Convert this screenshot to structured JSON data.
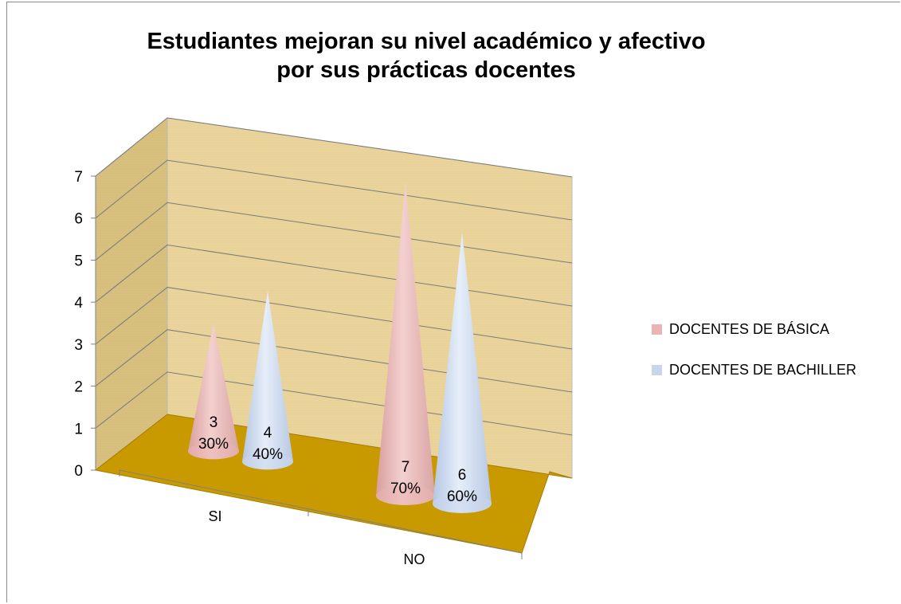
{
  "chart_data": {
    "type": "bar",
    "title_line1": "Estudiantes mejoran su nivel académico y afectivo",
    "title_line2": "por sus prácticas docentes",
    "categories": [
      "SI",
      "NO"
    ],
    "series": [
      {
        "name": "DOCENTES DE BÁSICA",
        "values": [
          3,
          7
        ],
        "labels": [
          "3",
          "7"
        ],
        "percent_labels": [
          "30%",
          "70%"
        ],
        "color": "#e9b4b3"
      },
      {
        "name": "DOCENTES DE BACHILLER",
        "values": [
          4,
          6
        ],
        "labels": [
          "4",
          "6"
        ],
        "percent_labels": [
          "40%",
          "60%"
        ],
        "color": "#c8d6ec"
      }
    ],
    "y_ticks": [
      "0",
      "1",
      "2",
      "3",
      "4",
      "5",
      "6",
      "7"
    ],
    "ylim": [
      0,
      7
    ],
    "grid": true,
    "legend_position": "right",
    "wall_color": "#e8d39a",
    "floor_color": "#c99a00"
  }
}
